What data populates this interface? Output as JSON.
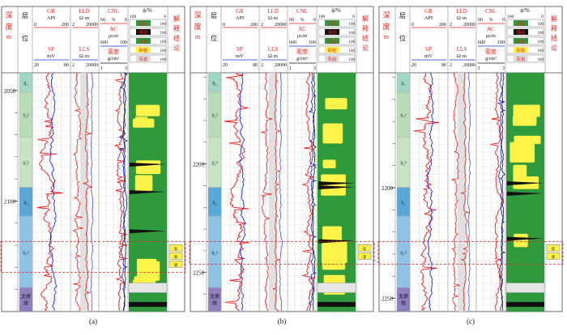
{
  "headers": {
    "depth": [
      "深",
      "度",
      "m"
    ],
    "layer": [
      "层",
      "位"
    ],
    "gr": {
      "name": "GR",
      "unit": "API",
      "min": "0",
      "max": "200"
    },
    "sp": {
      "name": "SP",
      "unit": "mV",
      "min": "20",
      "max": "80"
    },
    "lld": {
      "name": "LLD",
      "unit": "Ω·m",
      "min": "2",
      "max": "20000"
    },
    "lls": {
      "name": "LLS",
      "unit": "Ω·m",
      "min": "2",
      "max": "20000"
    },
    "cnl": {
      "name": "CNL",
      "unit": "%",
      "min": "60",
      "max": "0"
    },
    "ac": {
      "name": "AC",
      "unit": "μs/m",
      "min": "600",
      "max": "100"
    },
    "den": {
      "name": "密度",
      "unit": "g/cm³",
      "min": "1",
      "max": "3"
    },
    "phi": {
      "name": "ϕ/%",
      "min": "100",
      "max": "0"
    },
    "lith": [
      "泥岩",
      "煤岩",
      "灰岩",
      "砂岩",
      "灰岩"
    ],
    "lith_scale": "100",
    "interp": [
      "解",
      "释",
      "结",
      "论"
    ]
  },
  "panels": [
    {
      "caption": "(a)",
      "depth_ticks": [
        "2050",
        "2100"
      ],
      "layers": [
        "S₁",
        "S₂²",
        "S₂³",
        "S₂",
        "S₂⁴",
        "太原组"
      ],
      "interp_marks": [
        "①",
        "②",
        "③"
      ],
      "tick_depths": [
        2050,
        2100
      ],
      "depth_range": [
        2042,
        2150
      ]
    },
    {
      "caption": "(b)",
      "depth_ticks": [
        "2200",
        "2250"
      ],
      "layers": [
        "S₁",
        "S₂²",
        "S₂³",
        "S₂",
        "S₂⁴",
        "太原组"
      ],
      "interp_marks": [
        "①",
        "②"
      ],
      "tick_depths": [
        2200,
        2250
      ],
      "depth_range": [
        2158,
        2268
      ]
    },
    {
      "caption": "(c)",
      "depth_ticks": [
        "2200",
        "2250"
      ],
      "layers": [
        "S₁",
        "S₂²",
        "S₂³",
        "S₂",
        "S₂⁴",
        "太原组"
      ],
      "interp_marks": [
        "①",
        "②"
      ],
      "tick_depths": [
        2200,
        2250
      ],
      "depth_range": [
        2148,
        2256
      ]
    }
  ]
}
